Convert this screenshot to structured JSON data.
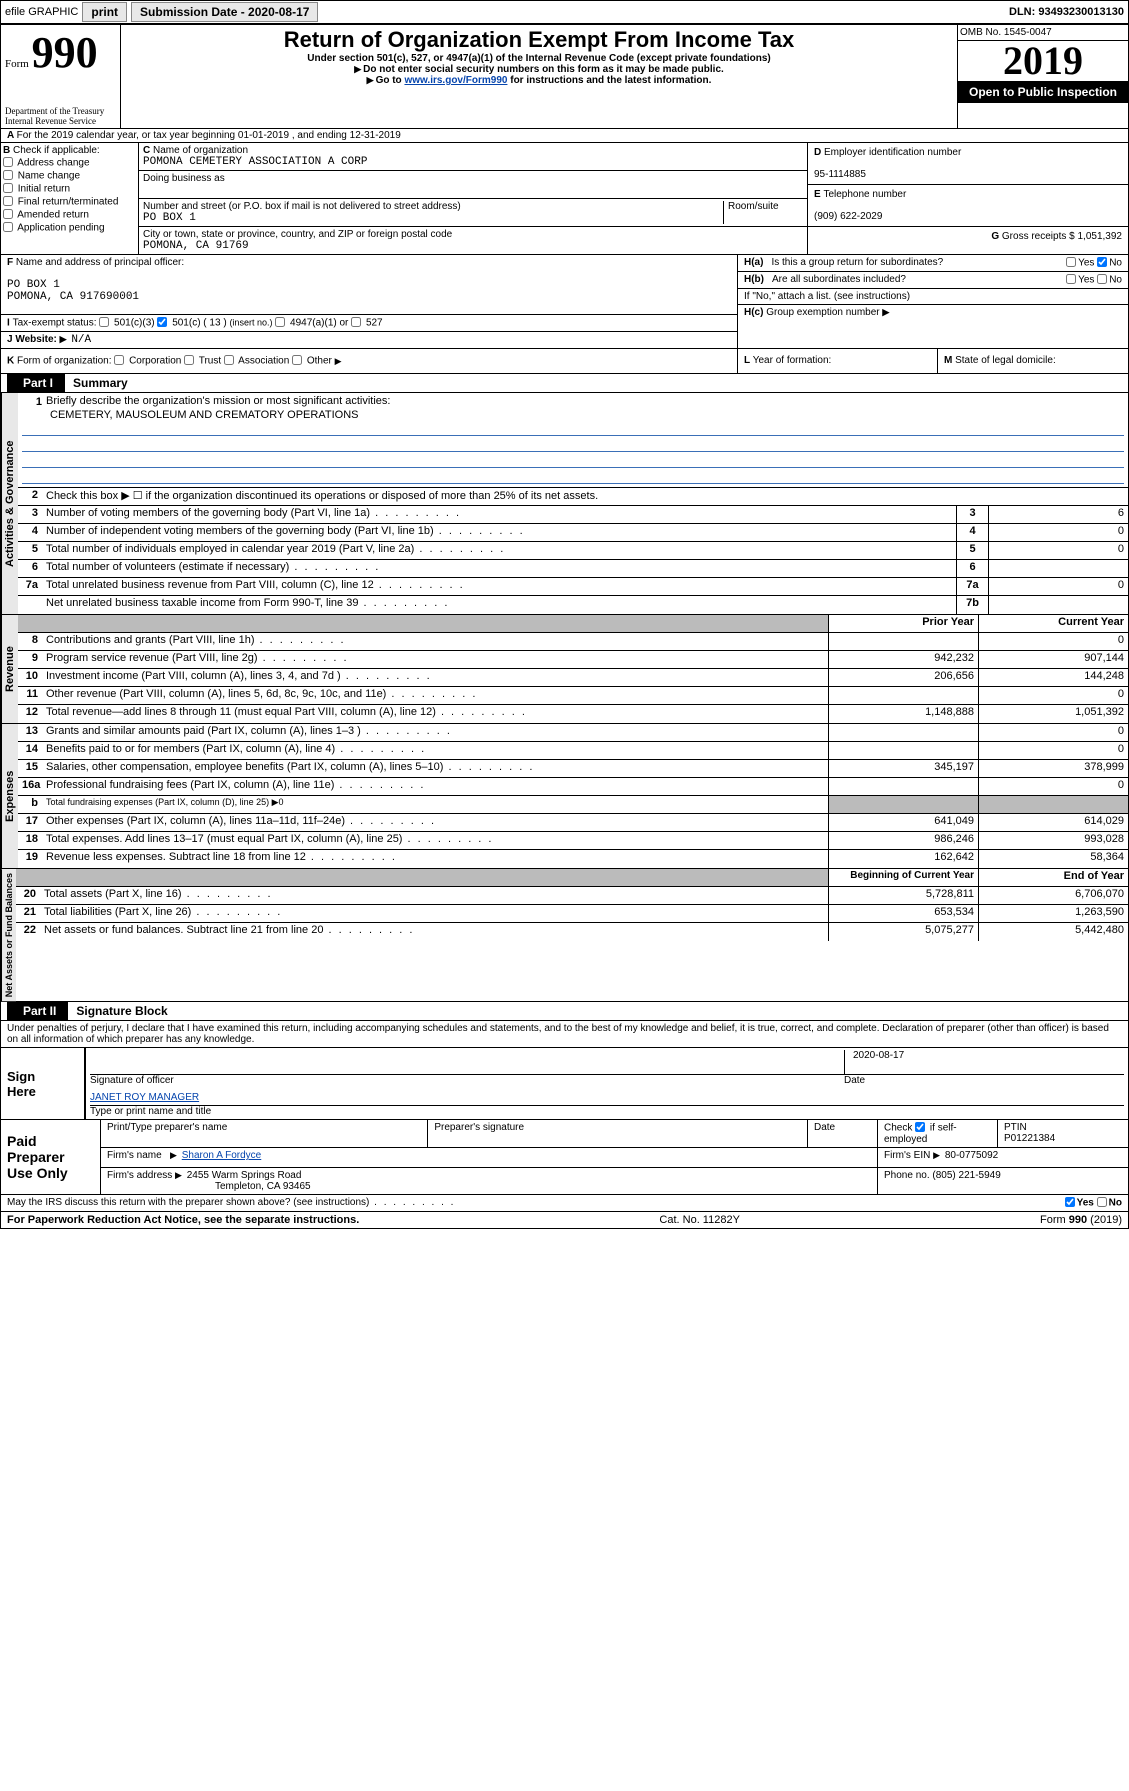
{
  "topbar": {
    "efile": "efile GRAPHIC",
    "print": "print",
    "subdate_label": "Submission Date - 2020-08-17",
    "dln": "DLN: 93493230013130"
  },
  "header": {
    "form_prefix": "Form",
    "form_num": "990",
    "dept": "Department of the Treasury\nInternal Revenue Service",
    "title": "Return of Organization Exempt From Income Tax",
    "sub1": "Under section 501(c), 527, or 4947(a)(1) of the Internal Revenue Code (except private foundations)",
    "sub2": "Do not enter social security numbers on this form as it may be made public.",
    "sub3_pre": "Go to ",
    "sub3_link": "www.irs.gov/Form990",
    "sub3_post": " for instructions and the latest information.",
    "omb": "OMB No. 1545-0047",
    "year": "2019",
    "open_pub": "Open to Public Inspection"
  },
  "row_a": "For the 2019 calendar year, or tax year beginning 01-01-2019   , and ending 12-31-2019",
  "box_b": {
    "label": "Check if applicable:",
    "opts": [
      "Address change",
      "Name change",
      "Initial return",
      "Final return/terminated",
      "Amended return",
      "Application pending"
    ]
  },
  "box_c": {
    "name_label": "Name of organization",
    "name": "POMONA CEMETERY ASSOCIATION A CORP",
    "dba_label": "Doing business as",
    "addr_label": "Number and street (or P.O. box if mail is not delivered to street address)",
    "room_label": "Room/suite",
    "addr": "PO BOX 1",
    "city_label": "City or town, state or province, country, and ZIP or foreign postal code",
    "city": "POMONA, CA  91769"
  },
  "box_d": {
    "label": "Employer identification number",
    "val": "95-1114885"
  },
  "box_e": {
    "label": "Telephone number",
    "val": "(909) 622-2029"
  },
  "box_g": {
    "label": "Gross receipts $",
    "val": "1,051,392"
  },
  "box_f": {
    "label": "Name and address of principal officer:",
    "lines": [
      "PO BOX 1",
      "POMONA, CA  917690001"
    ]
  },
  "box_h": {
    "ha_label": "Is this a group return for subordinates?",
    "ha_yes": "Yes",
    "ha_no": "No",
    "hb_label": "Are all subordinates included?",
    "hb_note": "If \"No,\" attach a list. (see instructions)",
    "hc_label": "Group exemption number"
  },
  "tax_exempt": {
    "label": "Tax-exempt status:",
    "o1": "501(c)(3)",
    "o2": "501(c) ( 13 )",
    "o2_note": "(insert no.)",
    "o3": "4947(a)(1) or",
    "o4": "527"
  },
  "box_j": {
    "label": "Website:",
    "val": "N/A"
  },
  "row_k": {
    "label": "Form of organization:",
    "opts": [
      "Corporation",
      "Trust",
      "Association",
      "Other"
    ]
  },
  "row_l": "Year of formation:",
  "row_m": "State of legal domicile:",
  "part1": {
    "tab": "Part I",
    "title": "Summary",
    "vtab_gov": "Activities & Governance",
    "vtab_rev": "Revenue",
    "vtab_exp": "Expenses",
    "vtab_net": "Net Assets or\nFund Balances",
    "l1_label": "Briefly describe the organization's mission or most significant activities:",
    "l1_val": "CEMETERY, MAUSOLEUM AND CREMATORY OPERATIONS",
    "l2": "Check this box ▶ ☐  if the organization discontinued its operations or disposed of more than 25% of its net assets.",
    "lines_gov": [
      {
        "n": "3",
        "t": "Number of voting members of the governing body (Part VI, line 1a)",
        "c": "3",
        "v": "6"
      },
      {
        "n": "4",
        "t": "Number of independent voting members of the governing body (Part VI, line 1b)",
        "c": "4",
        "v": "0"
      },
      {
        "n": "5",
        "t": "Total number of individuals employed in calendar year 2019 (Part V, line 2a)",
        "c": "5",
        "v": "0"
      },
      {
        "n": "6",
        "t": "Total number of volunteers (estimate if necessary)",
        "c": "6",
        "v": ""
      },
      {
        "n": "7a",
        "t": "Total unrelated business revenue from Part VIII, column (C), line 12",
        "c": "7a",
        "v": "0"
      },
      {
        "n": "",
        "t": "Net unrelated business taxable income from Form 990-T, line 39",
        "c": "7b",
        "v": ""
      }
    ],
    "hdr_prior": "Prior Year",
    "hdr_curr": "Current Year",
    "lines_rev": [
      {
        "n": "8",
        "t": "Contributions and grants (Part VIII, line 1h)",
        "p": "",
        "c": "0"
      },
      {
        "n": "9",
        "t": "Program service revenue (Part VIII, line 2g)",
        "p": "942,232",
        "c": "907,144"
      },
      {
        "n": "10",
        "t": "Investment income (Part VIII, column (A), lines 3, 4, and 7d )",
        "p": "206,656",
        "c": "144,248"
      },
      {
        "n": "11",
        "t": "Other revenue (Part VIII, column (A), lines 5, 6d, 8c, 9c, 10c, and 11e)",
        "p": "",
        "c": "0"
      },
      {
        "n": "12",
        "t": "Total revenue—add lines 8 through 11 (must equal Part VIII, column (A), line 12)",
        "p": "1,148,888",
        "c": "1,051,392"
      }
    ],
    "lines_exp": [
      {
        "n": "13",
        "t": "Grants and similar amounts paid (Part IX, column (A), lines 1–3 )",
        "p": "",
        "c": "0"
      },
      {
        "n": "14",
        "t": "Benefits paid to or for members (Part IX, column (A), line 4)",
        "p": "",
        "c": "0"
      },
      {
        "n": "15",
        "t": "Salaries, other compensation, employee benefits (Part IX, column (A), lines 5–10)",
        "p": "345,197",
        "c": "378,999"
      },
      {
        "n": "16a",
        "t": "Professional fundraising fees (Part IX, column (A), line 11e)",
        "p": "",
        "c": "0"
      },
      {
        "n": "b",
        "t": "Total fundraising expenses (Part IX, column (D), line 25) ▶0",
        "p": null,
        "c": null
      },
      {
        "n": "17",
        "t": "Other expenses (Part IX, column (A), lines 11a–11d, 11f–24e)",
        "p": "641,049",
        "c": "614,029"
      },
      {
        "n": "18",
        "t": "Total expenses. Add lines 13–17 (must equal Part IX, column (A), line 25)",
        "p": "986,246",
        "c": "993,028"
      },
      {
        "n": "19",
        "t": "Revenue less expenses. Subtract line 18 from line 12",
        "p": "162,642",
        "c": "58,364"
      }
    ],
    "hdr_beg": "Beginning of Current Year",
    "hdr_end": "End of Year",
    "lines_net": [
      {
        "n": "20",
        "t": "Total assets (Part X, line 16)",
        "p": "5,728,811",
        "c": "6,706,070"
      },
      {
        "n": "21",
        "t": "Total liabilities (Part X, line 26)",
        "p": "653,534",
        "c": "1,263,590"
      },
      {
        "n": "22",
        "t": "Net assets or fund balances. Subtract line 21 from line 20",
        "p": "5,075,277",
        "c": "5,442,480"
      }
    ]
  },
  "part2": {
    "tab": "Part II",
    "title": "Signature Block",
    "perjury": "Under penalties of perjury, I declare that I have examined this return, including accompanying schedules and statements, and to the best of my knowledge and belief, it is true, correct, and complete. Declaration of preparer (other than officer) is based on all information of which preparer has any knowledge.",
    "sign_here": "Sign Here",
    "sig_officer": "Signature of officer",
    "sig_date": "2020-08-17",
    "date": "Date",
    "name_title": "JANET ROY MANAGER",
    "name_title_label": "Type or print name and title"
  },
  "paid": {
    "label": "Paid Preparer Use Only",
    "print_name": "Print/Type preparer's name",
    "prep_sig": "Preparer's signature",
    "date": "Date",
    "check_if": "Check",
    "self_emp": "if self-employed",
    "ptin": "PTIN",
    "ptin_val": "P01221384",
    "firms_name": "Firm's name",
    "firm_val": "Sharon A Fordyce",
    "firms_ein": "Firm's EIN",
    "ein_val": "80-0775092",
    "firms_addr": "Firm's address",
    "addr1": "2455 Warm Springs Road",
    "addr2": "Templeton, CA  93465",
    "phone": "Phone no.",
    "phone_val": "(805) 221-5949"
  },
  "discuss": "May the IRS discuss this return with the preparer shown above? (see instructions)",
  "footer": {
    "left": "For Paperwork Reduction Act Notice, see the separate instructions.",
    "mid": "Cat. No. 11282Y",
    "right_pre": "Form ",
    "right_b": "990",
    "right_post": " (2019)"
  },
  "colors": {
    "link": "#0645ad",
    "underline": "#3a6fb7",
    "grey": "#bbbbbb"
  }
}
